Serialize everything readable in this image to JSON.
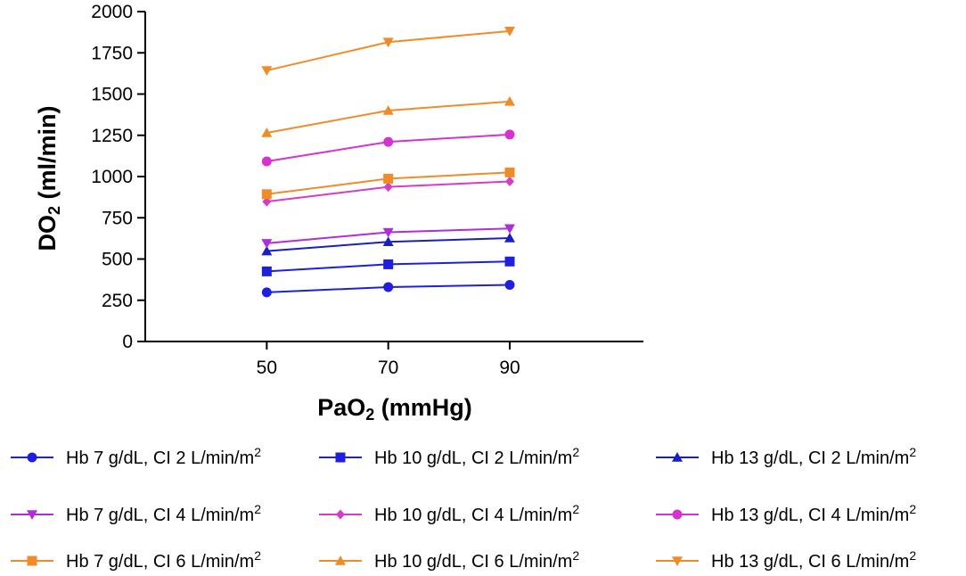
{
  "chart_data": {
    "type": "line",
    "x": [
      50,
      70,
      90
    ],
    "xlim": [
      30,
      112
    ],
    "ylim": [
      0,
      2000
    ],
    "yticks": [
      0,
      250,
      500,
      750,
      1000,
      1250,
      1500,
      1750,
      2000
    ],
    "xticks": [
      50,
      70,
      90
    ],
    "ylabel": {
      "main": "DO",
      "sub": "2",
      "rest": " (ml/min)"
    },
    "xlabel": {
      "main": "PaO",
      "sub": "2",
      "rest": " (mmHg)"
    },
    "grid": false,
    "legend_placement": "bottom",
    "series": [
      {
        "name": "Hb 7 g/dL, CI 2 L/min/m",
        "sup": "2",
        "color": "#1f1fe0",
        "marker": "circle",
        "values": [
          298,
          330,
          343
        ]
      },
      {
        "name": "Hb 10 g/dL, CI 2 L/min/m",
        "sup": "2",
        "color": "#1f1fe0",
        "marker": "square",
        "values": [
          425,
          468,
          485
        ]
      },
      {
        "name": "Hb 13 g/dL, CI 2 L/min/m",
        "sup": "2",
        "color": "#1a20c0",
        "marker": "triangle-up",
        "values": [
          548,
          604,
          627
        ]
      },
      {
        "name": "Hb 7 g/dL, CI 4 L/min/m",
        "sup": "2",
        "color": "#b02ed8",
        "marker": "triangle-down",
        "values": [
          595,
          662,
          685
        ]
      },
      {
        "name": "Hb 10 g/dL, CI 4 L/min/m",
        "sup": "2",
        "color": "#d63cc9",
        "marker": "diamond",
        "values": [
          848,
          937,
          970
        ]
      },
      {
        "name": "Hb 13 g/dL, CI 4 L/min/m",
        "sup": "2",
        "color": "#d632d0",
        "marker": "circle",
        "values": [
          1092,
          1210,
          1255
        ]
      },
      {
        "name": "Hb 7 g/dL, CI 6 L/min/m",
        "sup": "2",
        "color": "#f08c28",
        "marker": "square",
        "values": [
          893,
          987,
          1025
        ]
      },
      {
        "name": "Hb 10 g/dL, CI 6 L/min/m",
        "sup": "2",
        "color": "#f08c28",
        "marker": "triangle-up",
        "values": [
          1265,
          1400,
          1455
        ]
      },
      {
        "name": "Hb 13 g/dL, CI 6 L/min/m",
        "sup": "2",
        "color": "#f08c28",
        "marker": "triangle-down",
        "values": [
          1643,
          1815,
          1882
        ]
      }
    ]
  }
}
